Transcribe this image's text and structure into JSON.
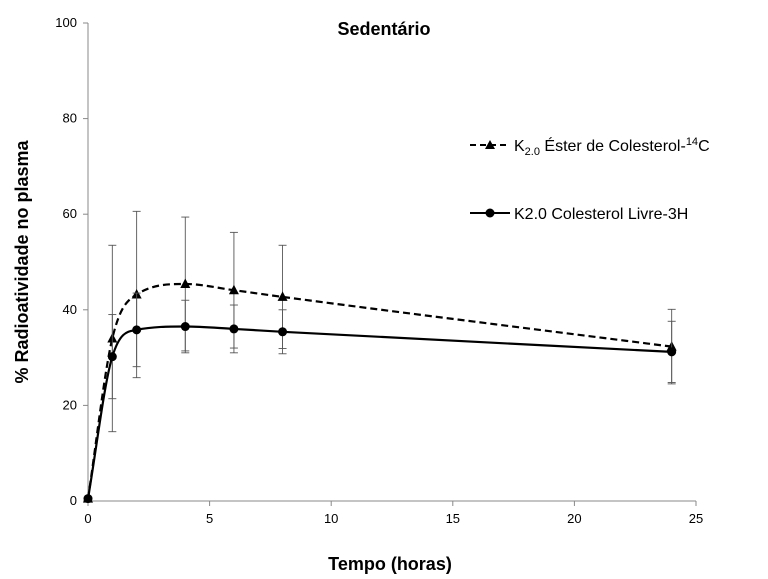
{
  "chart_data": {
    "type": "line",
    "title": "Sedentário",
    "xlabel": "Tempo (horas)",
    "ylabel": "% Radioatividade no plasma",
    "xlim": [
      0,
      25
    ],
    "ylim": [
      0,
      100
    ],
    "xticks": [
      0,
      5,
      10,
      15,
      20,
      25
    ],
    "yticks": [
      0,
      20,
      40,
      60,
      80,
      100
    ],
    "grid": false,
    "legend_position": "right",
    "series": [
      {
        "name_main": "K",
        "name_sub": "2.0",
        "name_mid": " Éster de Colesterol-",
        "name_sup": "14",
        "name_end": "C",
        "style": "dashed",
        "marker": "triangle",
        "x": [
          0,
          1,
          2,
          4,
          6,
          8,
          24
        ],
        "y": [
          0.5,
          34,
          43.2,
          45.4,
          44.1,
          42.7,
          32.3
        ],
        "err": [
          0,
          19.5,
          17.4,
          14,
          12.1,
          10.8,
          7.8
        ]
      },
      {
        "name": "K2.0 Colesterol Livre-3H",
        "style": "solid",
        "marker": "circle",
        "x": [
          0,
          1,
          2,
          4,
          6,
          8,
          24
        ],
        "y": [
          0.5,
          30.2,
          35.8,
          36.5,
          36,
          35.4,
          31.2
        ],
        "err": [
          0,
          8.8,
          7.7,
          5.5,
          5,
          4.6,
          6.4
        ]
      }
    ]
  }
}
